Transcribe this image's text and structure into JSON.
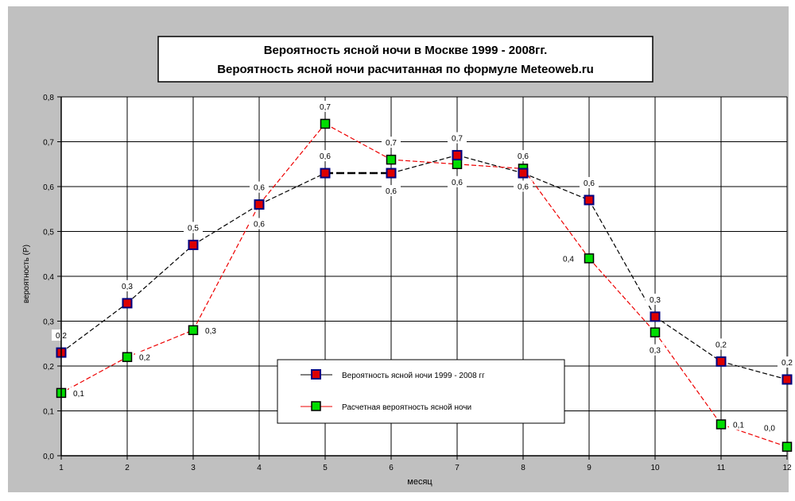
{
  "chart_data": {
    "type": "line",
    "title": [
      "Вероятность ясной ночи в Москве 1999 - 2008гг.",
      "Вероятность ясной ночи расчитанная по формуле Meteoweb.ru"
    ],
    "xlabel": "месяц",
    "ylabel": "вероятность (Р)",
    "categories": [
      "1",
      "2",
      "3",
      "4",
      "5",
      "6",
      "7",
      "8",
      "9",
      "10",
      "11",
      "12"
    ],
    "y_ticks": [
      "0,0",
      "0,1",
      "0,2",
      "0,3",
      "0,4",
      "0,5",
      "0,6",
      "0,7",
      "0,8"
    ],
    "ylim": [
      0,
      0.8
    ],
    "grid": true,
    "legend_position": "bottom-center",
    "series": [
      {
        "name": "Вероятность ясной ночи 1999 - 2008 гг",
        "values": [
          0.23,
          0.34,
          0.47,
          0.56,
          0.63,
          0.63,
          0.67,
          0.63,
          0.57,
          0.31,
          0.21,
          0.17
        ],
        "data_labels": [
          "0,2",
          "0,3",
          "0,5",
          "0,6",
          "0,6",
          "0,6",
          "0,7",
          "0,6",
          "0,6",
          "0,3",
          "0,2",
          "0,2"
        ],
        "line_color": "#000000",
        "marker_fill": "#dd0000",
        "marker_edge": "#000080"
      },
      {
        "name": "Расчетная вероятность ясной ночи",
        "values": [
          0.14,
          0.22,
          0.28,
          0.56,
          0.74,
          0.66,
          0.65,
          0.64,
          0.44,
          0.275,
          0.07,
          0.02
        ],
        "data_labels": [
          "0,1",
          "0,2",
          "0,3",
          "0,6",
          "0,7",
          "0,7",
          "0,6",
          "0,6",
          "0,4",
          "0,3",
          "0,1",
          "0,0"
        ],
        "line_color": "#ee0000",
        "marker_fill": "#00dd00",
        "marker_edge": "#000000"
      }
    ]
  }
}
